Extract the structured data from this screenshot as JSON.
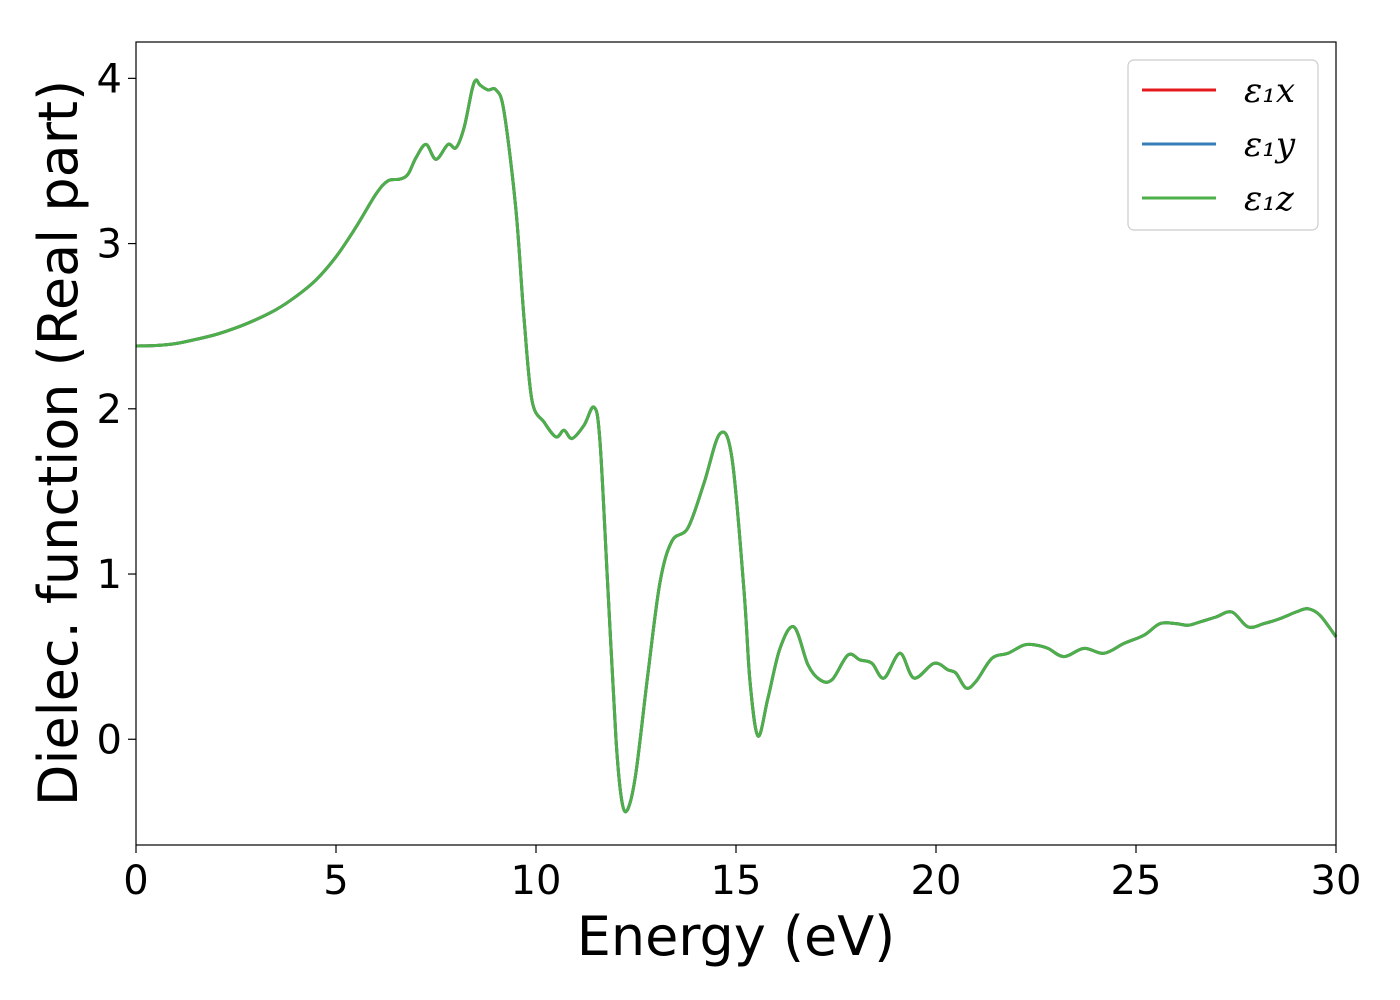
{
  "chart_data": {
    "type": "line",
    "xlabel": "Energy (eV)",
    "ylabel": "Dielec. function (Real part)",
    "xlim": [
      0,
      30
    ],
    "ylim": [
      -0.64,
      4.22
    ],
    "xticks": [
      0,
      5,
      10,
      15,
      20,
      25,
      30
    ],
    "yticks": [
      0,
      1,
      2,
      3,
      4
    ],
    "grid": false,
    "legend_position": "top-right",
    "series": [
      {
        "name": "ε₁x",
        "color": "#e41a1c"
      },
      {
        "name": "ε₁y",
        "color": "#377eb8"
      },
      {
        "name": "ε₁z",
        "color": "#4daf4a"
      }
    ],
    "x": [
      0,
      0.5,
      1,
      1.5,
      2,
      2.5,
      3,
      3.5,
      4,
      4.5,
      5,
      5.5,
      6,
      6.3,
      6.6,
      6.8,
      7.0,
      7.25,
      7.5,
      7.8,
      8.0,
      8.2,
      8.4,
      8.5,
      8.6,
      8.8,
      9.0,
      9.2,
      9.5,
      9.7,
      9.9,
      10.2,
      10.5,
      10.7,
      10.9,
      11.2,
      11.45,
      11.6,
      11.8,
      12.0,
      12.15,
      12.3,
      12.5,
      12.8,
      13.1,
      13.4,
      13.8,
      14.2,
      14.6,
      14.9,
      15.2,
      15.35,
      15.55,
      15.8,
      16.1,
      16.45,
      16.8,
      17.1,
      17.4,
      17.8,
      18.1,
      18.4,
      18.7,
      19.1,
      19.45,
      19.95,
      20.3,
      20.5,
      20.75,
      21.0,
      21.4,
      21.8,
      22.2,
      22.5,
      22.8,
      23.2,
      23.7,
      24.2,
      24.7,
      25.2,
      25.6,
      26.0,
      26.3,
      26.6,
      27.0,
      27.4,
      27.8,
      28.2,
      28.6,
      29.0,
      29.3,
      29.6,
      30.0
    ],
    "values": {
      "ε₁x": [
        2.38,
        2.383,
        2.395,
        2.42,
        2.45,
        2.49,
        2.54,
        2.6,
        2.68,
        2.78,
        2.92,
        3.1,
        3.3,
        3.38,
        3.39,
        3.42,
        3.52,
        3.6,
        3.51,
        3.6,
        3.58,
        3.7,
        3.93,
        3.99,
        3.96,
        3.93,
        3.93,
        3.8,
        3.2,
        2.55,
        2.05,
        1.92,
        1.83,
        1.87,
        1.82,
        1.9,
        2.01,
        1.8,
        0.9,
        0.0,
        -0.38,
        -0.42,
        -0.2,
        0.4,
        0.95,
        1.2,
        1.28,
        1.55,
        1.85,
        1.7,
        0.9,
        0.35,
        0.02,
        0.25,
        0.55,
        0.68,
        0.45,
        0.36,
        0.36,
        0.51,
        0.48,
        0.46,
        0.37,
        0.52,
        0.37,
        0.46,
        0.42,
        0.4,
        0.31,
        0.35,
        0.49,
        0.52,
        0.57,
        0.57,
        0.55,
        0.5,
        0.55,
        0.52,
        0.58,
        0.63,
        0.7,
        0.7,
        0.69,
        0.71,
        0.74,
        0.77,
        0.68,
        0.7,
        0.73,
        0.77,
        0.79,
        0.75,
        0.62
      ]
    }
  }
}
